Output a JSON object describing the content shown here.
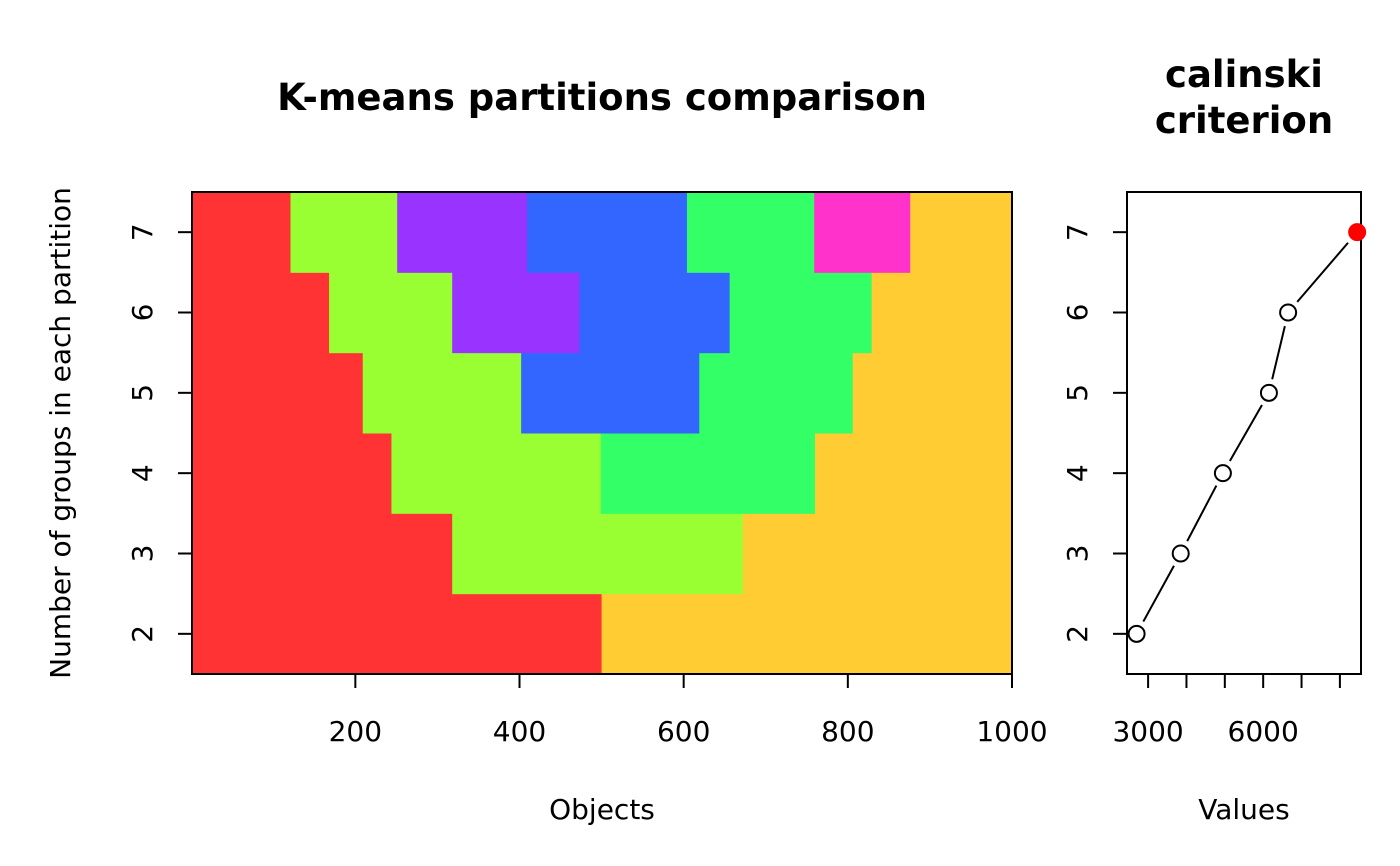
{
  "colors": {
    "1": "#FF3333",
    "2": "#99FF33",
    "3": "#9933FF",
    "4": "#3366FF",
    "5": "#33FF66",
    "6": "#FF33CC",
    "7": "#FFCC33",
    "highlight": "#FF0000"
  },
  "chart_data": [
    {
      "type": "heatmap",
      "title": "K-means partitions comparison",
      "xlabel": "Objects",
      "ylabel": "Number of groups in each partition",
      "xlim": [
        1,
        1000
      ],
      "ylim": [
        1.5,
        7.5
      ],
      "xticks": [
        200,
        400,
        600,
        800,
        1000
      ],
      "yticks": [
        2,
        3,
        4,
        5,
        6,
        7
      ],
      "rows": [
        {
          "k": 2,
          "segments": [
            {
              "from": 1,
              "to": 500,
              "color": "1"
            },
            {
              "from": 500,
              "to": 1000,
              "color": "7"
            }
          ]
        },
        {
          "k": 3,
          "segments": [
            {
              "from": 1,
              "to": 318,
              "color": "1"
            },
            {
              "from": 318,
              "to": 672,
              "color": "2"
            },
            {
              "from": 672,
              "to": 1000,
              "color": "7"
            }
          ]
        },
        {
          "k": 4,
          "segments": [
            {
              "from": 1,
              "to": 244,
              "color": "1"
            },
            {
              "from": 244,
              "to": 499,
              "color": "2"
            },
            {
              "from": 499,
              "to": 760,
              "color": "5"
            },
            {
              "from": 760,
              "to": 1000,
              "color": "7"
            }
          ]
        },
        {
          "k": 5,
          "segments": [
            {
              "from": 1,
              "to": 209,
              "color": "1"
            },
            {
              "from": 209,
              "to": 402,
              "color": "2"
            },
            {
              "from": 402,
              "to": 619,
              "color": "4"
            },
            {
              "from": 619,
              "to": 806,
              "color": "5"
            },
            {
              "from": 806,
              "to": 1000,
              "color": "7"
            }
          ]
        },
        {
          "k": 6,
          "segments": [
            {
              "from": 1,
              "to": 168,
              "color": "1"
            },
            {
              "from": 168,
              "to": 318,
              "color": "2"
            },
            {
              "from": 318,
              "to": 473,
              "color": "3"
            },
            {
              "from": 473,
              "to": 656,
              "color": "4"
            },
            {
              "from": 656,
              "to": 829,
              "color": "5"
            },
            {
              "from": 829,
              "to": 1000,
              "color": "7"
            }
          ]
        },
        {
          "k": 7,
          "segments": [
            {
              "from": 1,
              "to": 121,
              "color": "1"
            },
            {
              "from": 121,
              "to": 251,
              "color": "2"
            },
            {
              "from": 251,
              "to": 409,
              "color": "3"
            },
            {
              "from": 409,
              "to": 604,
              "color": "4"
            },
            {
              "from": 604,
              "to": 759,
              "color": "5"
            },
            {
              "from": 759,
              "to": 876,
              "color": "6"
            },
            {
              "from": 876,
              "to": 1000,
              "color": "7"
            }
          ]
        }
      ]
    },
    {
      "type": "line",
      "title": "calinski criterion",
      "title_lines": [
        "calinski",
        "criterion"
      ],
      "xlabel": "Values",
      "ylabel": "",
      "xlim": [
        2450,
        8550
      ],
      "ylim": [
        1.5,
        7.5
      ],
      "xticks": [
        3000,
        4000,
        5000,
        6000,
        7000,
        8000
      ],
      "xticklabels": [
        "3000",
        "",
        "",
        "6000",
        "",
        ""
      ],
      "yticks": [
        2,
        3,
        4,
        5,
        6,
        7
      ],
      "x": [
        2700,
        3850,
        4950,
        6150,
        6650,
        8450
      ],
      "y": [
        2,
        3,
        4,
        5,
        6,
        7
      ],
      "best_k": 7
    }
  ]
}
